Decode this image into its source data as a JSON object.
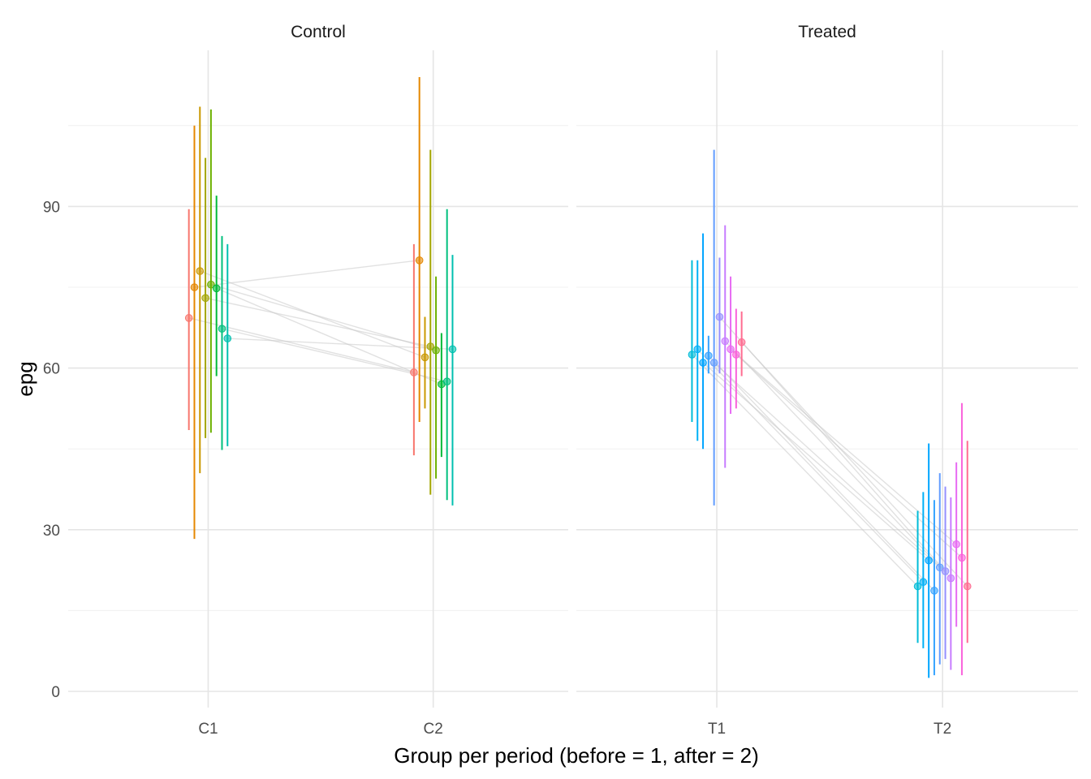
{
  "chart_data": {
    "type": "scatter",
    "subtype": "paired points with vertical interval bars, faceted",
    "xlabel": "Group per period (before = 1, after = 2)",
    "ylabel": "epg",
    "ylim": [
      -3,
      119
    ],
    "yticks": [
      0,
      30,
      60,
      90
    ],
    "grid": true,
    "legend": "none",
    "facets": [
      {
        "name": "Control",
        "categories": [
          "C1",
          "C2"
        ],
        "subjects": [
          {
            "color": "#F8766D",
            "before": {
              "y": 69.3,
              "lo": 48.5,
              "hi": 89.5
            },
            "after": {
              "y": 59.2,
              "lo": 43.8,
              "hi": 83.0
            }
          },
          {
            "color": "#E58700",
            "before": {
              "y": 75.0,
              "lo": 28.3,
              "hi": 105.0
            },
            "after": {
              "y": 80.0,
              "lo": 50.0,
              "hi": 114.0
            }
          },
          {
            "color": "#C99800",
            "before": {
              "y": 78.0,
              "lo": 40.5,
              "hi": 108.5
            },
            "after": {
              "y": 62.0,
              "lo": 52.5,
              "hi": 69.5
            }
          },
          {
            "color": "#A3A500",
            "before": {
              "y": 73.0,
              "lo": 47.0,
              "hi": 99.0
            },
            "after": {
              "y": 64.0,
              "lo": 36.5,
              "hi": 100.5
            }
          },
          {
            "color": "#6BB100",
            "before": {
              "y": 75.5,
              "lo": 48.0,
              "hi": 108.0
            },
            "after": {
              "y": 63.3,
              "lo": 39.5,
              "hi": 77.0
            }
          },
          {
            "color": "#00BA38",
            "before": {
              "y": 74.8,
              "lo": 58.5,
              "hi": 92.0
            },
            "after": {
              "y": 57.0,
              "lo": 43.5,
              "hi": 66.5
            }
          },
          {
            "color": "#00BF7D",
            "before": {
              "y": 67.3,
              "lo": 44.8,
              "hi": 84.5
            },
            "after": {
              "y": 57.5,
              "lo": 35.5,
              "hi": 89.5
            }
          },
          {
            "color": "#00C0AF",
            "before": {
              "y": 65.5,
              "lo": 45.5,
              "hi": 83.0
            },
            "after": {
              "y": 63.5,
              "lo": 34.5,
              "hi": 81.0
            }
          }
        ]
      },
      {
        "name": "Treated",
        "categories": [
          "T1",
          "T2"
        ],
        "subjects": [
          {
            "color": "#00BCD8",
            "before": {
              "y": 62.5,
              "lo": 50.0,
              "hi": 80.0
            },
            "after": {
              "y": 19.5,
              "lo": 9.0,
              "hi": 33.5
            }
          },
          {
            "color": "#00B0F6",
            "before": {
              "y": 63.5,
              "lo": 46.5,
              "hi": 80.0
            },
            "after": {
              "y": 20.3,
              "lo": 8.0,
              "hi": 37.0
            }
          },
          {
            "color": "#00A5FF",
            "before": {
              "y": 61.0,
              "lo": 45.0,
              "hi": 85.0
            },
            "after": {
              "y": 24.3,
              "lo": 2.5,
              "hi": 46.0
            }
          },
          {
            "color": "#35A2FF",
            "before": {
              "y": 62.3,
              "lo": 59.0,
              "hi": 66.0
            },
            "after": {
              "y": 18.7,
              "lo": 3.0,
              "hi": 35.5
            }
          },
          {
            "color": "#619CFF",
            "before": {
              "y": 61.0,
              "lo": 34.5,
              "hi": 100.5
            },
            "after": {
              "y": 23.0,
              "lo": 5.0,
              "hi": 40.5
            }
          },
          {
            "color": "#9590FF",
            "before": {
              "y": 69.5,
              "lo": 59.0,
              "hi": 80.5
            },
            "after": {
              "y": 22.3,
              "lo": 6.0,
              "hi": 38.0
            }
          },
          {
            "color": "#C77CFF",
            "before": {
              "y": 65.0,
              "lo": 41.5,
              "hi": 86.5
            },
            "after": {
              "y": 21.0,
              "lo": 4.0,
              "hi": 36.0
            }
          },
          {
            "color": "#E76BF3",
            "before": {
              "y": 63.5,
              "lo": 51.5,
              "hi": 77.0
            },
            "after": {
              "y": 27.3,
              "lo": 12.0,
              "hi": 42.5
            }
          },
          {
            "color": "#FA62DB",
            "before": {
              "y": 62.5,
              "lo": 52.5,
              "hi": 71.0
            },
            "after": {
              "y": 24.8,
              "lo": 3.0,
              "hi": 53.5
            }
          },
          {
            "color": "#FF6C91",
            "before": {
              "y": 64.8,
              "lo": 58.5,
              "hi": 70.5
            },
            "after": {
              "y": 19.5,
              "lo": 9.0,
              "hi": 46.5
            }
          }
        ]
      }
    ]
  }
}
